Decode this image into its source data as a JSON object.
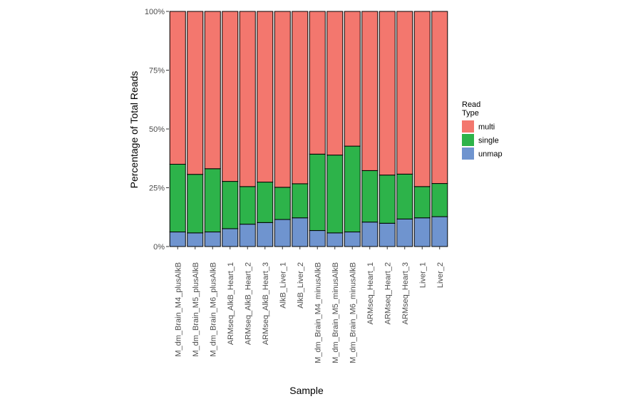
{
  "chart_data": {
    "type": "bar",
    "stacked": true,
    "xlabel": "Sample",
    "ylabel": "Percentage of Total Reads",
    "ylim": [
      0,
      100
    ],
    "yticks": [
      {
        "value": 0,
        "label": "0%"
      },
      {
        "value": 25,
        "label": "25%"
      },
      {
        "value": 50,
        "label": "50%"
      },
      {
        "value": 75,
        "label": "75%"
      },
      {
        "value": 100,
        "label": "100%"
      }
    ],
    "categories": [
      "M_dm_Brain_M4_plusAlkB",
      "M_dm_Brain_M5_plusAlkB",
      "M_dm_Brain_M6_plusAlkB",
      "ARMseq_AlkB_Heart_1",
      "ARMseq_AlkB_Heart_2",
      "ARMseq_AlkB_Heart_3",
      "AlkB_Liver_1",
      "AlkB_Liver_2",
      "M_dm_Brain_M4_minusAlkB",
      "M_dm_Brain_M5_minusAlkB",
      "M_dm_Brain_M6_minusAlkB",
      "ARMseq_Heart_1",
      "ARMseq_Heart_2",
      "ARMseq_Heart_3",
      "Liver_1",
      "Liver_2"
    ],
    "series": [
      {
        "name": "unmap",
        "color": "#6f94cf",
        "values": [
          6.2,
          5.8,
          6.2,
          7.6,
          9.5,
          10.2,
          11.5,
          12.2,
          6.8,
          5.8,
          6.2,
          10.4,
          9.9,
          11.7,
          12.2,
          12.7
        ]
      },
      {
        "name": "single",
        "color": "#2db34a",
        "values": [
          28.8,
          24.9,
          26.9,
          20.1,
          16.0,
          17.2,
          13.7,
          14.5,
          32.5,
          33.1,
          36.5,
          21.9,
          20.5,
          19.1,
          13.3,
          14.1
        ]
      },
      {
        "name": "multi",
        "color": "#f3776e",
        "values": [
          65.0,
          69.3,
          66.9,
          72.3,
          74.5,
          72.6,
          74.8,
          73.3,
          60.7,
          61.1,
          57.3,
          67.7,
          69.6,
          69.2,
          74.5,
          73.2
        ]
      }
    ],
    "grid": false,
    "legend": {
      "title_lines": [
        "Read",
        "Type"
      ],
      "placement": "right",
      "entries": [
        {
          "label": "multi",
          "color": "#f3776e"
        },
        {
          "label": "single",
          "color": "#2db34a"
        },
        {
          "label": "unmap",
          "color": "#6f94cf"
        }
      ]
    }
  }
}
